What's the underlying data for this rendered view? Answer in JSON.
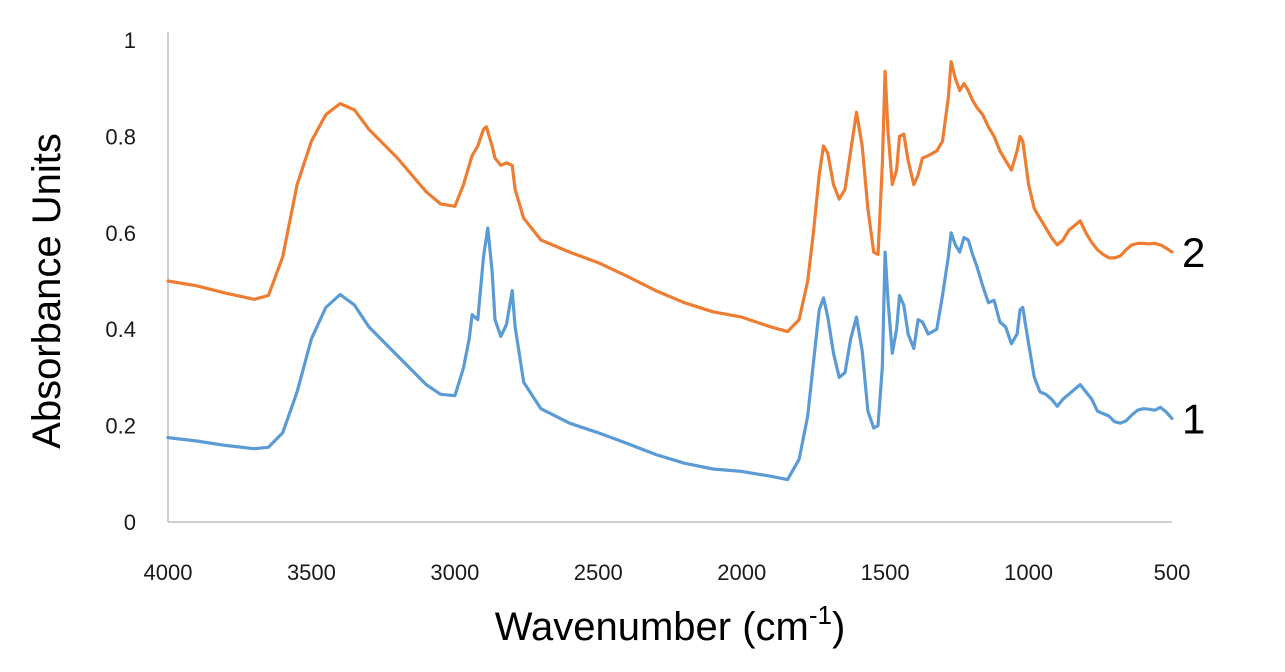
{
  "chart_data": {
    "type": "line",
    "title": "",
    "xlabel": "Wavenumber (cm",
    "xlabel_superscript": "-1",
    "xlabel_suffix": ")",
    "ylabel": "Absorbance Units",
    "xlim": [
      4000,
      500
    ],
    "ylim": [
      0,
      1
    ],
    "x_ticks": [
      4000,
      3500,
      3000,
      2500,
      2000,
      1500,
      1000,
      500
    ],
    "y_ticks": [
      0,
      0.2,
      0.4,
      0.6,
      0.8,
      1
    ],
    "y_tick_labels": [
      "0",
      "0.2",
      "0.4",
      "0.6",
      "0.8",
      "1"
    ],
    "grid": false,
    "series": [
      {
        "name": "1",
        "color": "#5b9bd5",
        "points": [
          [
            4000,
            0.175
          ],
          [
            3900,
            0.168
          ],
          [
            3800,
            0.159
          ],
          [
            3700,
            0.152
          ],
          [
            3650,
            0.155
          ],
          [
            3600,
            0.185
          ],
          [
            3550,
            0.27
          ],
          [
            3500,
            0.38
          ],
          [
            3450,
            0.445
          ],
          [
            3400,
            0.472
          ],
          [
            3350,
            0.45
          ],
          [
            3300,
            0.405
          ],
          [
            3200,
            0.345
          ],
          [
            3100,
            0.285
          ],
          [
            3050,
            0.265
          ],
          [
            3000,
            0.262
          ],
          [
            2970,
            0.32
          ],
          [
            2950,
            0.38
          ],
          [
            2940,
            0.43
          ],
          [
            2920,
            0.42
          ],
          [
            2900,
            0.55
          ],
          [
            2885,
            0.61
          ],
          [
            2870,
            0.52
          ],
          [
            2860,
            0.42
          ],
          [
            2840,
            0.385
          ],
          [
            2820,
            0.41
          ],
          [
            2800,
            0.48
          ],
          [
            2790,
            0.405
          ],
          [
            2760,
            0.29
          ],
          [
            2700,
            0.235
          ],
          [
            2600,
            0.205
          ],
          [
            2500,
            0.185
          ],
          [
            2400,
            0.163
          ],
          [
            2300,
            0.14
          ],
          [
            2200,
            0.122
          ],
          [
            2100,
            0.11
          ],
          [
            2000,
            0.105
          ],
          [
            1900,
            0.095
          ],
          [
            1840,
            0.088
          ],
          [
            1800,
            0.13
          ],
          [
            1770,
            0.22
          ],
          [
            1750,
            0.33
          ],
          [
            1730,
            0.44
          ],
          [
            1715,
            0.465
          ],
          [
            1700,
            0.425
          ],
          [
            1680,
            0.35
          ],
          [
            1660,
            0.3
          ],
          [
            1640,
            0.31
          ],
          [
            1620,
            0.38
          ],
          [
            1600,
            0.425
          ],
          [
            1580,
            0.355
          ],
          [
            1560,
            0.23
          ],
          [
            1540,
            0.195
          ],
          [
            1525,
            0.2
          ],
          [
            1510,
            0.32
          ],
          [
            1500,
            0.56
          ],
          [
            1490,
            0.46
          ],
          [
            1475,
            0.35
          ],
          [
            1460,
            0.4
          ],
          [
            1450,
            0.47
          ],
          [
            1435,
            0.45
          ],
          [
            1420,
            0.39
          ],
          [
            1400,
            0.36
          ],
          [
            1385,
            0.42
          ],
          [
            1370,
            0.415
          ],
          [
            1350,
            0.39
          ],
          [
            1320,
            0.4
          ],
          [
            1300,
            0.47
          ],
          [
            1280,
            0.55
          ],
          [
            1270,
            0.6
          ],
          [
            1255,
            0.575
          ],
          [
            1240,
            0.56
          ],
          [
            1225,
            0.59
          ],
          [
            1210,
            0.585
          ],
          [
            1195,
            0.555
          ],
          [
            1180,
            0.53
          ],
          [
            1160,
            0.49
          ],
          [
            1140,
            0.455
          ],
          [
            1120,
            0.46
          ],
          [
            1100,
            0.415
          ],
          [
            1080,
            0.405
          ],
          [
            1060,
            0.37
          ],
          [
            1040,
            0.39
          ],
          [
            1030,
            0.44
          ],
          [
            1020,
            0.445
          ],
          [
            1000,
            0.37
          ],
          [
            980,
            0.3
          ],
          [
            960,
            0.27
          ],
          [
            940,
            0.265
          ],
          [
            920,
            0.255
          ],
          [
            900,
            0.24
          ],
          [
            880,
            0.255
          ],
          [
            860,
            0.265
          ],
          [
            840,
            0.275
          ],
          [
            820,
            0.285
          ],
          [
            800,
            0.27
          ],
          [
            780,
            0.255
          ],
          [
            760,
            0.23
          ],
          [
            740,
            0.225
          ],
          [
            720,
            0.22
          ],
          [
            700,
            0.208
          ],
          [
            680,
            0.205
          ],
          [
            660,
            0.21
          ],
          [
            640,
            0.222
          ],
          [
            620,
            0.232
          ],
          [
            600,
            0.235
          ],
          [
            580,
            0.234
          ],
          [
            560,
            0.232
          ],
          [
            540,
            0.238
          ],
          [
            520,
            0.228
          ],
          [
            500,
            0.215
          ]
        ]
      },
      {
        "name": "2",
        "color": "#ed7d31",
        "points": [
          [
            4000,
            0.5
          ],
          [
            3900,
            0.49
          ],
          [
            3800,
            0.475
          ],
          [
            3700,
            0.462
          ],
          [
            3650,
            0.47
          ],
          [
            3600,
            0.55
          ],
          [
            3550,
            0.7
          ],
          [
            3500,
            0.79
          ],
          [
            3450,
            0.845
          ],
          [
            3400,
            0.868
          ],
          [
            3350,
            0.855
          ],
          [
            3300,
            0.815
          ],
          [
            3200,
            0.755
          ],
          [
            3100,
            0.685
          ],
          [
            3050,
            0.66
          ],
          [
            3000,
            0.655
          ],
          [
            2970,
            0.7
          ],
          [
            2950,
            0.74
          ],
          [
            2940,
            0.76
          ],
          [
            2920,
            0.78
          ],
          [
            2900,
            0.815
          ],
          [
            2890,
            0.82
          ],
          [
            2870,
            0.78
          ],
          [
            2860,
            0.755
          ],
          [
            2840,
            0.74
          ],
          [
            2820,
            0.745
          ],
          [
            2800,
            0.74
          ],
          [
            2790,
            0.69
          ],
          [
            2760,
            0.63
          ],
          [
            2700,
            0.585
          ],
          [
            2600,
            0.56
          ],
          [
            2500,
            0.538
          ],
          [
            2400,
            0.51
          ],
          [
            2300,
            0.48
          ],
          [
            2200,
            0.455
          ],
          [
            2100,
            0.436
          ],
          [
            2000,
            0.425
          ],
          [
            1900,
            0.405
          ],
          [
            1840,
            0.395
          ],
          [
            1800,
            0.42
          ],
          [
            1770,
            0.5
          ],
          [
            1750,
            0.6
          ],
          [
            1730,
            0.72
          ],
          [
            1715,
            0.78
          ],
          [
            1700,
            0.765
          ],
          [
            1680,
            0.7
          ],
          [
            1660,
            0.67
          ],
          [
            1640,
            0.69
          ],
          [
            1620,
            0.77
          ],
          [
            1600,
            0.85
          ],
          [
            1580,
            0.78
          ],
          [
            1560,
            0.65
          ],
          [
            1540,
            0.56
          ],
          [
            1525,
            0.555
          ],
          [
            1510,
            0.74
          ],
          [
            1500,
            0.935
          ],
          [
            1490,
            0.81
          ],
          [
            1475,
            0.7
          ],
          [
            1460,
            0.73
          ],
          [
            1450,
            0.8
          ],
          [
            1435,
            0.805
          ],
          [
            1420,
            0.75
          ],
          [
            1400,
            0.7
          ],
          [
            1385,
            0.72
          ],
          [
            1370,
            0.755
          ],
          [
            1350,
            0.76
          ],
          [
            1320,
            0.77
          ],
          [
            1300,
            0.79
          ],
          [
            1280,
            0.88
          ],
          [
            1270,
            0.955
          ],
          [
            1255,
            0.92
          ],
          [
            1240,
            0.895
          ],
          [
            1225,
            0.91
          ],
          [
            1210,
            0.895
          ],
          [
            1195,
            0.875
          ],
          [
            1180,
            0.86
          ],
          [
            1160,
            0.845
          ],
          [
            1140,
            0.82
          ],
          [
            1120,
            0.8
          ],
          [
            1100,
            0.77
          ],
          [
            1080,
            0.75
          ],
          [
            1060,
            0.73
          ],
          [
            1040,
            0.77
          ],
          [
            1030,
            0.8
          ],
          [
            1020,
            0.79
          ],
          [
            1000,
            0.7
          ],
          [
            980,
            0.65
          ],
          [
            960,
            0.63
          ],
          [
            940,
            0.61
          ],
          [
            920,
            0.59
          ],
          [
            900,
            0.575
          ],
          [
            880,
            0.585
          ],
          [
            860,
            0.605
          ],
          [
            840,
            0.615
          ],
          [
            820,
            0.625
          ],
          [
            800,
            0.6
          ],
          [
            780,
            0.58
          ],
          [
            760,
            0.565
          ],
          [
            740,
            0.555
          ],
          [
            720,
            0.548
          ],
          [
            700,
            0.548
          ],
          [
            680,
            0.552
          ],
          [
            660,
            0.565
          ],
          [
            640,
            0.575
          ],
          [
            620,
            0.578
          ],
          [
            600,
            0.578
          ],
          [
            580,
            0.577
          ],
          [
            560,
            0.578
          ],
          [
            540,
            0.575
          ],
          [
            520,
            0.568
          ],
          [
            500,
            0.56
          ]
        ]
      }
    ]
  }
}
